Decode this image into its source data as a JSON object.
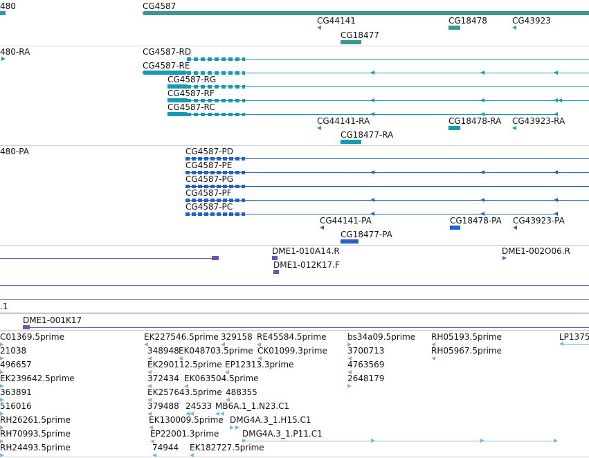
{
  "colors": {
    "gene": "#3d9595",
    "mrna": "#1699b3",
    "cds": "#2463c6",
    "clone": "#7451b2",
    "est": "#7fb3d9",
    "separator": "#cfcfcf"
  },
  "gene_track": {
    "labels": [
      "480",
      "CG4587",
      "CG44141",
      "CG18478",
      "CG43923",
      "CG18477"
    ]
  },
  "mrna_track": {
    "labels": [
      "480-RA",
      "CG4587-RD",
      "CG4587-RE",
      "CG4587-RG",
      "CG4587-RF",
      "CG4587-RC",
      "CG44141-RA",
      "CG18478-RA",
      "CG43923-RA",
      "CG18477-RA"
    ]
  },
  "cds_track": {
    "labels": [
      "480-PA",
      "CG4587-PD",
      "CG4587-PE",
      "CG4587-PG",
      "CG4587-PF",
      "CG4587-PC",
      "CG44141-PA",
      "CG18478-PA",
      "CG43923-PA",
      "CG18477-PA"
    ]
  },
  "clone_track": {
    "labels": [
      "DME1-010A14.R",
      "DME1-012K17.F",
      "DME1-002O06.R",
      ".1",
      "DME1-001K17"
    ]
  },
  "est_track": {
    "labels": [
      "C01369.5prime",
      "EK227546.5prime",
      "329158",
      "RE45584.5prime",
      "bs34a09.5prime",
      "RH05193.5prime",
      "LP1375",
      "21038",
      "348948",
      "EK048703.5prime",
      "CK01099.3prime",
      "3700713",
      "RH05967.5prime",
      "496657",
      "EK290112.5prime",
      "EP12313.3prime",
      "4763569",
      "EK239642.5prime",
      "372434",
      "EK063504.5prime",
      "2648179",
      "363891",
      "EK257643.5prime",
      "488355",
      "516016",
      "379488",
      "24533",
      "MB6A.1_1.N23.C1",
      "RH26261.5prime",
      "EK130009.5prime",
      "DMG4A.3_1.H15.C1",
      "RH70993.5prime",
      "EP22001.3prime",
      "DMG4A.3_1.P11.C1",
      "RH24493.5prime",
      "74944",
      "EK182727.5prime"
    ]
  }
}
